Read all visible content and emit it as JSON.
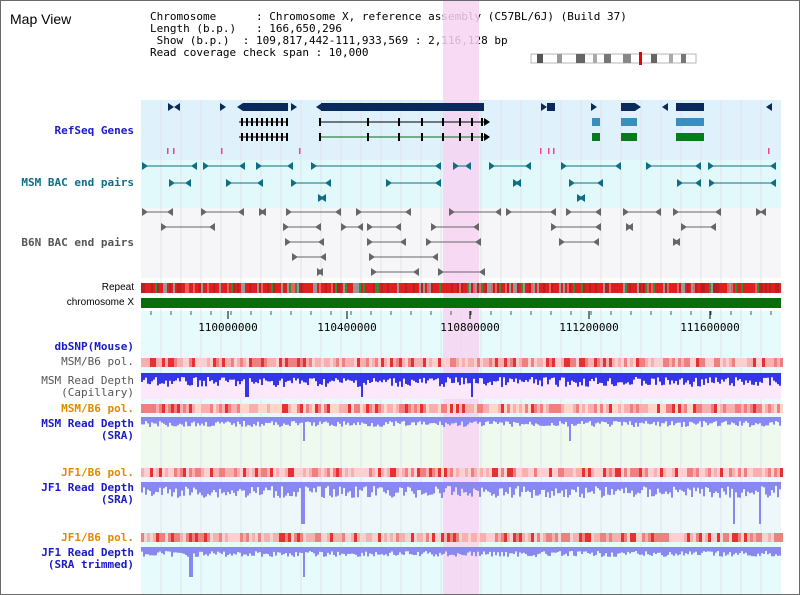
{
  "view_title": "Map View",
  "info": {
    "line1": "Chromosome      : Chromosome X, reference assembly (C57BL/6J) (Build 37)",
    "line2": "Length (b.p.)   : 166,650,296",
    "line3": " Show (b.p.)  : 109,817,442-111,933,569 : 2,116,128 bp",
    "line4": "Read coverage check span : 10,000"
  },
  "tracks": {
    "refseq": "RefSeq Genes",
    "msm_bac": "MSM BAC end pairs",
    "b6n_bac": "B6N BAC end pairs",
    "repeat": "Repeat",
    "chromosome": "chromosome X",
    "dbsnp": "dbSNP(Mouse)",
    "msm_b6_pol": "MSM/B6 pol.",
    "msm_read_cap_1": "MSM Read Depth",
    "msm_read_cap_2": "(Capillary)",
    "msm_b6_pol2": "MSM/B6 pol.",
    "msm_read_sra_1": "MSM Read Depth",
    "msm_read_sra_2": "(SRA)",
    "jf1_b6_pol": "JF1/B6 pol.",
    "jf1_read_sra_1": "JF1 Read Depth",
    "jf1_read_sra_2": "(SRA)",
    "jf1_b6_pol2": "JF1/B6 pol.",
    "jf1_read_trim_1": "JF1 Read Depth",
    "jf1_read_trim_2": "(SRA trimmed)"
  },
  "ruler": {
    "ticks": [
      "110000000",
      "110400000",
      "110800000",
      "111200000",
      "111600000"
    ]
  },
  "colors": {
    "refseq_bg": "#dff1fb",
    "msm_bac_bg": "#e2f9fb",
    "b6n_bg": "#f6f6f8",
    "highlight": "#f7d4f2",
    "gene_navy": "#0a2a5e",
    "gene_teal": "#3a8dbc",
    "gene_green": "#0a7a1e",
    "chrom_green": "#067006",
    "depth_blue": "#3535e8",
    "depth_light": "#8888f0"
  }
}
